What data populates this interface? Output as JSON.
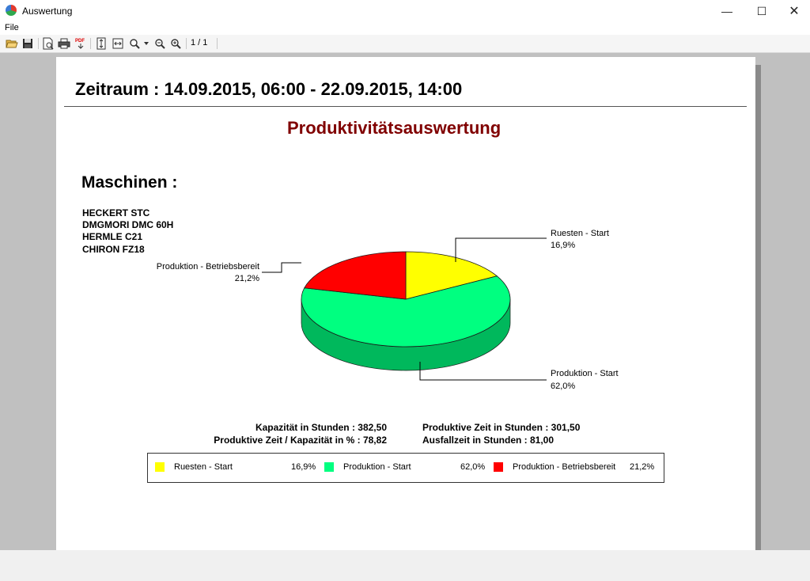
{
  "window": {
    "title": "Auswertung",
    "minimize": "—",
    "maximize": "☐",
    "close": "✕"
  },
  "menu": {
    "file": "File"
  },
  "toolbar": {
    "icons": [
      "open-folder-icon",
      "save-icon",
      "print-preview-icon",
      "print-icon",
      "pdf-export-icon",
      "fit-page-icon",
      "fit-width-icon",
      "zoom-icon",
      "zoom-out-icon",
      "zoom-in-icon"
    ],
    "page_counter": "1 / 1"
  },
  "report": {
    "period": "Zeitraum : 14.09.2015, 06:00 - 22.09.2015, 14:00",
    "title": "Produktivitätsauswertung",
    "machines_heading": "Maschinen :",
    "machines": [
      "HECKERT STC",
      "DMGMORI DMC 60H",
      "HERMLE C21",
      "CHIRON FZ18"
    ],
    "stats": {
      "capacity": "Kapazität in Stunden : 382,50",
      "productive_ratio": "Produktive Zeit / Kapazität in % : 78,82",
      "productive_time": "Produktive Zeit in Stunden : 301,50",
      "downtime": "Ausfallzeit in Stunden : 81,00"
    }
  },
  "chart_data": {
    "type": "pie",
    "title": "",
    "slices": [
      {
        "name": "Ruesten - Start",
        "value": 16.9,
        "label": "16,9%",
        "color": "#ffff00"
      },
      {
        "name": "Produktion - Start",
        "value": 62.0,
        "label": "62,0%",
        "color": "#00ff80"
      },
      {
        "name": "Produktion - Betriebsbereit",
        "value": 21.2,
        "label": "21,2%",
        "color": "#ff0000"
      }
    ],
    "legend_position": "bottom"
  }
}
